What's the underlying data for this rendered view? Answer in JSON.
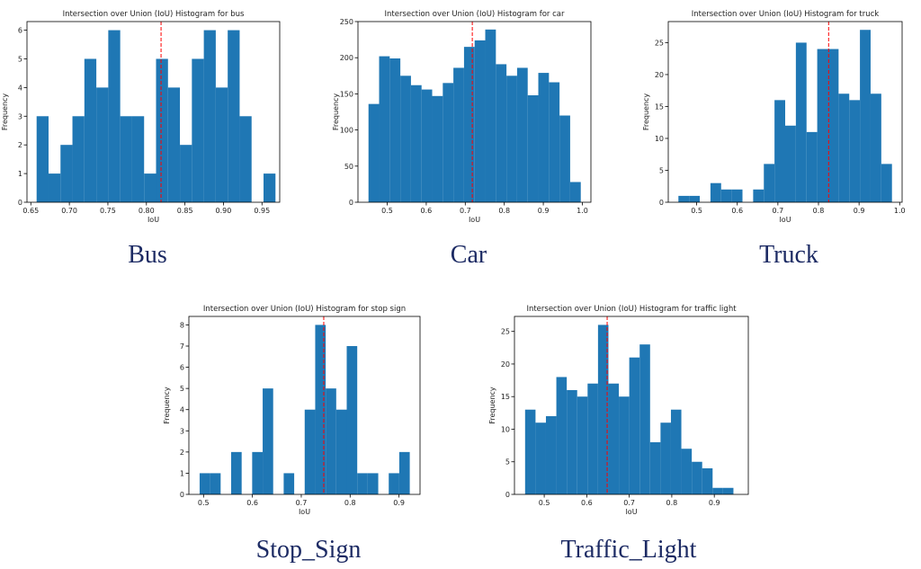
{
  "colors": {
    "bar": "#1f77b4",
    "mean_line": "#ff0000",
    "axis": "#000000",
    "caption": "#1d2b64"
  },
  "chart_data": [
    {
      "type": "bar",
      "title": "Intersection over Union (IoU) Histogram for bus",
      "xlabel": "IoU",
      "ylabel": "Frequency",
      "caption": "Bus",
      "bin_start": 0.6575,
      "bin_width": 0.0155,
      "values": [
        3,
        1,
        2,
        3,
        5,
        4,
        6,
        3,
        3,
        1,
        5,
        4,
        2,
        5,
        6,
        4,
        6,
        3,
        0,
        1
      ],
      "mean_line_x": 0.819,
      "xlim": [
        0.645,
        0.973
      ],
      "ylim": [
        0,
        6.3
      ],
      "xticks": [
        0.65,
        0.7,
        0.75,
        0.8,
        0.85,
        0.9,
        0.95
      ],
      "xtick_labels": [
        "0.65",
        "0.70",
        "0.75",
        "0.80",
        "0.85",
        "0.90",
        "0.95"
      ],
      "yticks": [
        0,
        1,
        2,
        3,
        4,
        5,
        6
      ],
      "ytick_labels": [
        "0",
        "1",
        "2",
        "3",
        "4",
        "5",
        "6"
      ]
    },
    {
      "type": "bar",
      "title": "Intersection over Union (IoU) Histogram for car",
      "xlabel": "IoU",
      "ylabel": "Frequency",
      "caption": "Car",
      "bin_start": 0.452,
      "bin_width": 0.0272,
      "values": [
        136,
        202,
        199,
        175,
        162,
        156,
        147,
        165,
        186,
        215,
        224,
        239,
        191,
        175,
        186,
        148,
        179,
        166,
        120,
        28
      ],
      "mean_line_x": 0.718,
      "xlim": [
        0.425,
        1.022
      ],
      "ylim": [
        0,
        250
      ],
      "xticks": [
        0.5,
        0.6,
        0.7,
        0.8,
        0.9,
        1.0
      ],
      "xtick_labels": [
        "0.5",
        "0.6",
        "0.7",
        "0.8",
        "0.9",
        "1.0"
      ],
      "yticks": [
        0,
        50,
        100,
        150,
        200,
        250
      ],
      "ytick_labels": [
        "0",
        "50",
        "100",
        "150",
        "200",
        "250"
      ]
    },
    {
      "type": "bar",
      "title": "Intersection over Union (IoU) Histogram for truck",
      "xlabel": "IoU",
      "ylabel": "Frequency",
      "caption": "Truck",
      "bin_start": 0.455,
      "bin_width": 0.0263,
      "values": [
        1,
        1,
        0,
        3,
        2,
        2,
        0,
        2,
        6,
        16,
        12,
        25,
        11,
        24,
        24,
        17,
        16,
        27,
        17,
        6
      ],
      "mean_line_x": 0.825,
      "xlim": [
        0.43,
        1.006
      ],
      "ylim": [
        0,
        28.3
      ],
      "xticks": [
        0.5,
        0.6,
        0.7,
        0.8,
        0.9,
        1.0
      ],
      "xtick_labels": [
        "0.5",
        "0.6",
        "0.7",
        "0.8",
        "0.9",
        "1.0"
      ],
      "yticks": [
        0,
        5,
        10,
        15,
        20,
        25
      ],
      "ytick_labels": [
        "0",
        "5",
        "10",
        "15",
        "20",
        "25"
      ]
    },
    {
      "type": "bar",
      "title": "Intersection over Union (IoU) Histogram for stop sign",
      "xlabel": "IoU",
      "ylabel": "Frequency",
      "caption": "Stop_Sign",
      "bin_start": 0.492,
      "bin_width": 0.0215,
      "values": [
        1,
        1,
        0,
        2,
        0,
        2,
        5,
        0,
        1,
        0,
        4,
        8,
        5,
        4,
        7,
        1,
        1,
        0,
        1,
        2
      ],
      "mean_line_x": 0.746,
      "xlim": [
        0.47,
        0.943
      ],
      "ylim": [
        0,
        8.4
      ],
      "xticks": [
        0.5,
        0.6,
        0.7,
        0.8,
        0.9
      ],
      "xtick_labels": [
        "0.5",
        "0.6",
        "0.7",
        "0.8",
        "0.9"
      ],
      "yticks": [
        0,
        1,
        2,
        3,
        4,
        5,
        6,
        7,
        8
      ],
      "ytick_labels": [
        "0",
        "1",
        "2",
        "3",
        "4",
        "5",
        "6",
        "7",
        "8"
      ]
    },
    {
      "type": "bar",
      "title": "Intersection over Union (IoU) Histogram for traffic light",
      "xlabel": "IoU",
      "ylabel": "Frequency",
      "caption": "Traffic_Light",
      "bin_start": 0.455,
      "bin_width": 0.0245,
      "values": [
        13,
        11,
        12,
        18,
        16,
        15,
        17,
        26,
        17,
        15,
        21,
        23,
        8,
        11,
        13,
        7,
        5,
        4,
        1,
        1
      ],
      "mean_line_x": 0.648,
      "xlim": [
        0.43,
        0.98
      ],
      "ylim": [
        0,
        27.3
      ],
      "xticks": [
        0.5,
        0.6,
        0.7,
        0.8,
        0.9
      ],
      "xtick_labels": [
        "0.5",
        "0.6",
        "0.7",
        "0.8",
        "0.9"
      ],
      "yticks": [
        0,
        5,
        10,
        15,
        20,
        25
      ],
      "ytick_labels": [
        "0",
        "5",
        "10",
        "15",
        "20",
        "25"
      ]
    }
  ]
}
